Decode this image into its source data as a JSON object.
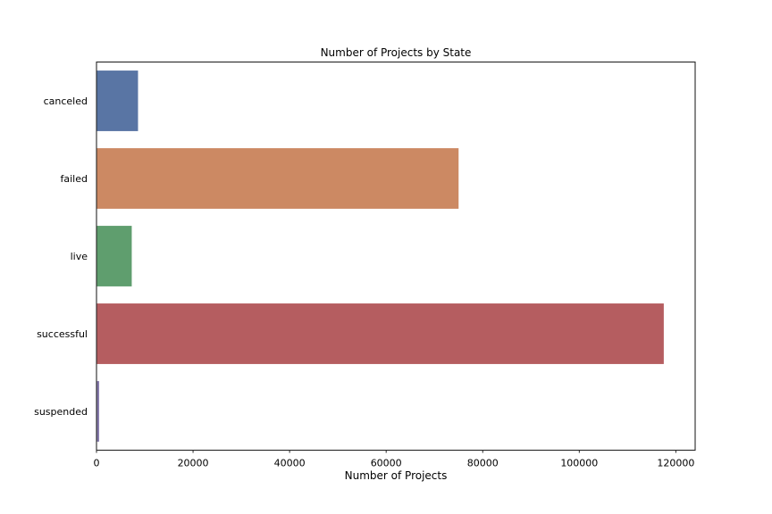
{
  "chart_data": {
    "type": "bar",
    "orientation": "horizontal",
    "title": "Number of Projects by State",
    "xlabel": "Number of Projects",
    "ylabel": "",
    "categories": [
      "canceled",
      "failed",
      "live",
      "successful",
      "suspended"
    ],
    "values": [
      8600,
      75000,
      7300,
      117500,
      550
    ],
    "colors": [
      "#5975a4",
      "#cc8963",
      "#5f9e6e",
      "#b55d60",
      "#857aab"
    ],
    "xlim": [
      0,
      124000
    ],
    "xticks": [
      0,
      20000,
      40000,
      60000,
      80000,
      100000,
      120000
    ],
    "grid": false,
    "legend": "none"
  }
}
